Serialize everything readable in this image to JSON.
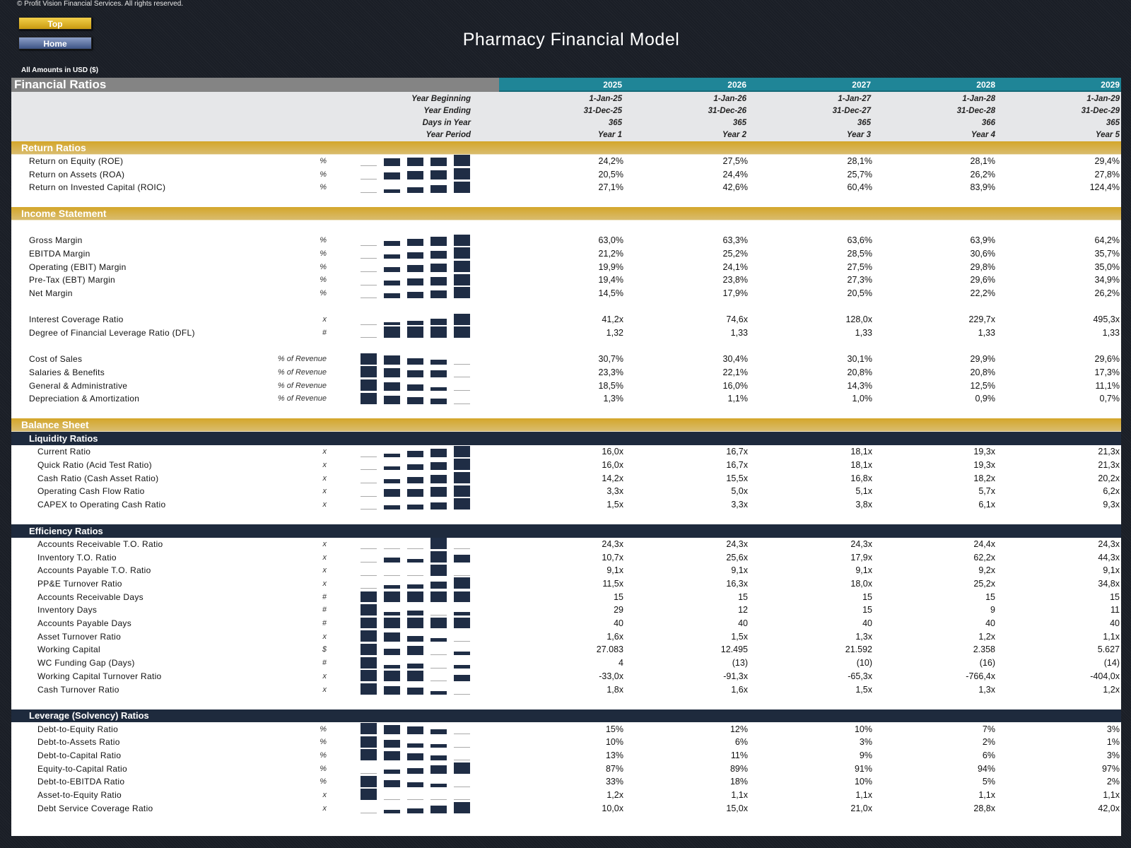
{
  "copyright": "© Profit Vision Financial Services. All rights reserved.",
  "nav": {
    "top": "Top",
    "home": "Home"
  },
  "title": "Pharmacy Financial Model",
  "currency_note": "All Amounts in  USD ($)",
  "table_title": "Financial Ratios",
  "years": [
    "2025",
    "2026",
    "2027",
    "2028",
    "2029"
  ],
  "meta": [
    {
      "label": "Year Beginning",
      "values": [
        "1-Jan-25",
        "1-Jan-26",
        "1-Jan-27",
        "1-Jan-28",
        "1-Jan-29"
      ]
    },
    {
      "label": "Year Ending",
      "values": [
        "31-Dec-25",
        "31-Dec-26",
        "31-Dec-27",
        "31-Dec-28",
        "31-Dec-29"
      ]
    },
    {
      "label": "Days in Year",
      "values": [
        "365",
        "365",
        "365",
        "366",
        "365"
      ]
    },
    {
      "label": "Year Period",
      "values": [
        "Year 1",
        "Year 2",
        "Year 3",
        "Year 4",
        "Year 5"
      ]
    }
  ],
  "colors": {
    "teal": "#1f8597",
    "gold": "#d4a62a",
    "navy": "#1e2a3d",
    "bar": "#1f2d45"
  },
  "rows": [
    {
      "type": "section",
      "label": "Return Ratios"
    },
    {
      "type": "row",
      "label": "Return on Equity (ROE)",
      "unit": "%",
      "values": [
        "24,2%",
        "27,5%",
        "28,1%",
        "28,1%",
        "29,4%"
      ]
    },
    {
      "type": "row",
      "label": "Return on Assets (ROA)",
      "unit": "%",
      "values": [
        "20,5%",
        "24,4%",
        "25,7%",
        "26,2%",
        "27,8%"
      ]
    },
    {
      "type": "row",
      "label": "Return on Invested Capital (ROIC)",
      "unit": "%",
      "values": [
        "27,1%",
        "42,6%",
        "60,4%",
        "83,9%",
        "124,4%"
      ]
    },
    {
      "type": "blank"
    },
    {
      "type": "section",
      "label": "Income Statement"
    },
    {
      "type": "blank"
    },
    {
      "type": "row",
      "label": "Gross Margin",
      "unit": "%",
      "values": [
        "63,0%",
        "63,3%",
        "63,6%",
        "63,9%",
        "64,2%"
      ]
    },
    {
      "type": "row",
      "label": "EBITDA Margin",
      "unit": "%",
      "values": [
        "21,2%",
        "25,2%",
        "28,5%",
        "30,6%",
        "35,7%"
      ]
    },
    {
      "type": "row",
      "label": "Operating (EBIT) Margin",
      "unit": "%",
      "values": [
        "19,9%",
        "24,1%",
        "27,5%",
        "29,8%",
        "35,0%"
      ]
    },
    {
      "type": "row",
      "label": "Pre-Tax (EBT) Margin",
      "unit": "%",
      "values": [
        "19,4%",
        "23,8%",
        "27,3%",
        "29,6%",
        "34,9%"
      ]
    },
    {
      "type": "row",
      "label": "Net Margin",
      "unit": "%",
      "values": [
        "14,5%",
        "17,9%",
        "20,5%",
        "22,2%",
        "26,2%"
      ]
    },
    {
      "type": "blank"
    },
    {
      "type": "row",
      "label": "Interest Coverage Ratio",
      "unit": "x",
      "values": [
        "41,2x",
        "74,6x",
        "128,0x",
        "229,7x",
        "495,3x"
      ]
    },
    {
      "type": "row",
      "label": "Degree of Financial Leverage Ratio (DFL)",
      "unit": "#",
      "values": [
        "1,32",
        "1,33",
        "1,33",
        "1,33",
        "1,33"
      ]
    },
    {
      "type": "blank"
    },
    {
      "type": "row",
      "label": "Cost of Sales",
      "unit": "% of Revenue",
      "values": [
        "30,7%",
        "30,4%",
        "30,1%",
        "29,9%",
        "29,6%"
      ]
    },
    {
      "type": "row",
      "label": "Salaries & Benefits",
      "unit": "% of Revenue",
      "values": [
        "23,3%",
        "22,1%",
        "20,8%",
        "20,8%",
        "17,3%"
      ]
    },
    {
      "type": "row",
      "label": "General & Administrative",
      "unit": "% of Revenue",
      "values": [
        "18,5%",
        "16,0%",
        "14,3%",
        "12,5%",
        "11,1%"
      ]
    },
    {
      "type": "row",
      "label": "Depreciation & Amortization",
      "unit": "% of Revenue",
      "values": [
        "1,3%",
        "1,1%",
        "1,0%",
        "0,9%",
        "0,7%"
      ]
    },
    {
      "type": "blank"
    },
    {
      "type": "section",
      "label": "Balance Sheet"
    },
    {
      "type": "sub",
      "label": "Liquidity Ratios"
    },
    {
      "type": "row",
      "ind": true,
      "label": "Current Ratio",
      "unit": "x",
      "values": [
        "16,0x",
        "16,7x",
        "18,1x",
        "19,3x",
        "21,3x"
      ]
    },
    {
      "type": "row",
      "ind": true,
      "label": "Quick Ratio (Acid Test Ratio)",
      "unit": "x",
      "values": [
        "16,0x",
        "16,7x",
        "18,1x",
        "19,3x",
        "21,3x"
      ]
    },
    {
      "type": "row",
      "ind": true,
      "label": "Cash Ratio (Cash Asset Ratio)",
      "unit": "x",
      "values": [
        "14,2x",
        "15,5x",
        "16,8x",
        "18,2x",
        "20,2x"
      ]
    },
    {
      "type": "row",
      "ind": true,
      "label": "Operating Cash Flow Ratio",
      "unit": "x",
      "values": [
        "3,3x",
        "5,0x",
        "5,1x",
        "5,7x",
        "6,2x"
      ]
    },
    {
      "type": "row",
      "ind": true,
      "label": "CAPEX to Operating Cash Ratio",
      "unit": "x",
      "values": [
        "1,5x",
        "3,3x",
        "3,8x",
        "6,1x",
        "9,3x"
      ]
    },
    {
      "type": "blank"
    },
    {
      "type": "sub",
      "label": "Efficiency Ratios"
    },
    {
      "type": "row",
      "ind": true,
      "label": "Accounts Receivable T.O. Ratio",
      "unit": "x",
      "values": [
        "24,3x",
        "24,3x",
        "24,3x",
        "24,4x",
        "24,3x"
      ]
    },
    {
      "type": "row",
      "ind": true,
      "label": "Inventory T.O. Ratio",
      "unit": "x",
      "values": [
        "10,7x",
        "25,6x",
        "17,9x",
        "62,2x",
        "44,3x"
      ]
    },
    {
      "type": "row",
      "ind": true,
      "label": "Accounts Payable T.O. Ratio",
      "unit": "x",
      "values": [
        "9,1x",
        "9,1x",
        "9,1x",
        "9,2x",
        "9,1x"
      ]
    },
    {
      "type": "row",
      "ind": true,
      "label": "PP&E Turnover Ratio",
      "unit": "x",
      "values": [
        "11,5x",
        "16,3x",
        "18,0x",
        "25,2x",
        "34,8x"
      ]
    },
    {
      "type": "row",
      "ind": true,
      "label": "Accounts Receivable Days",
      "unit": "#",
      "values": [
        "15",
        "15",
        "15",
        "15",
        "15"
      ]
    },
    {
      "type": "row",
      "ind": true,
      "label": "Inventory Days",
      "unit": "#",
      "values": [
        "29",
        "12",
        "15",
        "9",
        "11"
      ]
    },
    {
      "type": "row",
      "ind": true,
      "label": "Accounts Payable Days",
      "unit": "#",
      "values": [
        "40",
        "40",
        "40",
        "40",
        "40"
      ]
    },
    {
      "type": "row",
      "ind": true,
      "label": "Asset Turnover Ratio",
      "unit": "x",
      "values": [
        "1,6x",
        "1,5x",
        "1,3x",
        "1,2x",
        "1,1x"
      ]
    },
    {
      "type": "row",
      "ind": true,
      "label": "Working Capital",
      "unit": "$",
      "values": [
        "27.083",
        "12.495",
        "21.592",
        "2.358",
        "5.627"
      ]
    },
    {
      "type": "row",
      "ind": true,
      "label": "WC Funding Gap (Days)",
      "unit": "#",
      "values": [
        "4",
        "(13)",
        "(10)",
        "(16)",
        "(14)"
      ]
    },
    {
      "type": "row",
      "ind": true,
      "label": "Working Capital Turnover Ratio",
      "unit": "x",
      "values": [
        "-33,0x",
        "-91,3x",
        "-65,3x",
        "-766,4x",
        "-404,0x"
      ]
    },
    {
      "type": "row",
      "ind": true,
      "label": "Cash Turnover Ratio",
      "unit": "x",
      "values": [
        "1,8x",
        "1,6x",
        "1,5x",
        "1,3x",
        "1,2x"
      ]
    },
    {
      "type": "blank"
    },
    {
      "type": "sub",
      "label": "Leverage (Solvency) Ratios"
    },
    {
      "type": "row",
      "ind": true,
      "label": "Debt-to-Equity Ratio",
      "unit": "%",
      "values": [
        "15%",
        "12%",
        "10%",
        "7%",
        "3%"
      ]
    },
    {
      "type": "row",
      "ind": true,
      "label": "Debt-to-Assets Ratio",
      "unit": "%",
      "values": [
        "10%",
        "6%",
        "3%",
        "2%",
        "1%"
      ]
    },
    {
      "type": "row",
      "ind": true,
      "label": "Debt-to-Capital Ratio",
      "unit": "%",
      "values": [
        "13%",
        "11%",
        "9%",
        "6%",
        "3%"
      ]
    },
    {
      "type": "row",
      "ind": true,
      "label": "Equity-to-Capital Ratio",
      "unit": "%",
      "values": [
        "87%",
        "89%",
        "91%",
        "94%",
        "97%"
      ]
    },
    {
      "type": "row",
      "ind": true,
      "label": "Debt-to-EBITDA Ratio",
      "unit": "%",
      "values": [
        "33%",
        "18%",
        "10%",
        "5%",
        "2%"
      ]
    },
    {
      "type": "row",
      "ind": true,
      "label": "Asset-to-Equity Ratio",
      "unit": "x",
      "values": [
        "1,2x",
        "1,1x",
        "1,1x",
        "1,1x",
        "1,1x"
      ]
    },
    {
      "type": "row",
      "ind": true,
      "label": "Debt Service Coverage Ratio",
      "unit": "x",
      "values": [
        "10,0x",
        "15,0x",
        "21,0x",
        "28,8x",
        "42,0x"
      ]
    }
  ]
}
